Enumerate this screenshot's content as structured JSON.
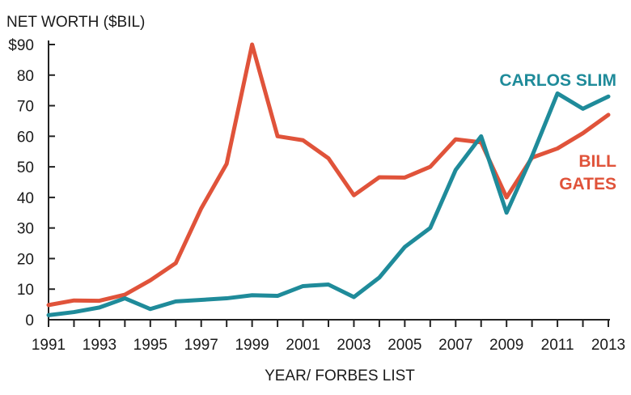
{
  "chart_data": {
    "type": "line",
    "title": "",
    "ylabel": "NET WORTH ($BIL)",
    "xlabel": "YEAR/ FORBES LIST",
    "ylim": [
      0,
      90
    ],
    "xlim": [
      1991,
      2013
    ],
    "grid": false,
    "y_ticks": [
      {
        "value": 0,
        "label": "0"
      },
      {
        "value": 10,
        "label": "10"
      },
      {
        "value": 20,
        "label": "20"
      },
      {
        "value": 30,
        "label": "30"
      },
      {
        "value": 40,
        "label": "40"
      },
      {
        "value": 50,
        "label": "50"
      },
      {
        "value": 60,
        "label": "60"
      },
      {
        "value": 70,
        "label": "70"
      },
      {
        "value": 80,
        "label": "80"
      },
      {
        "value": 90,
        "label": "$90"
      }
    ],
    "x_ticks": [
      {
        "value": 1991,
        "label": "1991"
      },
      {
        "value": 1993,
        "label": "1993"
      },
      {
        "value": 1995,
        "label": "1995"
      },
      {
        "value": 1997,
        "label": "1997"
      },
      {
        "value": 1999,
        "label": "1999"
      },
      {
        "value": 2001,
        "label": "2001"
      },
      {
        "value": 2003,
        "label": "2003"
      },
      {
        "value": 2005,
        "label": "2005"
      },
      {
        "value": 2007,
        "label": "2007"
      },
      {
        "value": 2009,
        "label": "2009"
      },
      {
        "value": 2011,
        "label": "2011"
      },
      {
        "value": 2013,
        "label": "2013"
      }
    ],
    "x": [
      1991,
      1992,
      1993,
      1994,
      1995,
      1996,
      1997,
      1998,
      1999,
      2000,
      2001,
      2002,
      2003,
      2004,
      2005,
      2006,
      2007,
      2008,
      2009,
      2010,
      2011,
      2012,
      2013
    ],
    "series": [
      {
        "name": "BILL GATES",
        "label_lines": [
          "BILL",
          "GATES"
        ],
        "color": "#e0533a",
        "values": [
          4.8,
          6.3,
          6.2,
          8.2,
          12.9,
          18.5,
          36.4,
          51,
          90,
          60,
          58.7,
          52.8,
          40.7,
          46.6,
          46.5,
          50,
          59,
          58,
          40,
          53,
          56,
          61,
          67
        ]
      },
      {
        "name": "CARLOS SLIM",
        "label_lines": [
          "CARLOS SLIM"
        ],
        "color": "#1f8b9a",
        "values": [
          1.5,
          2.5,
          4,
          7,
          3.5,
          6,
          6.5,
          7,
          8,
          7.8,
          11,
          11.5,
          7.4,
          13.8,
          23.8,
          30,
          49,
          60,
          35,
          53.5,
          74,
          69,
          73
        ]
      }
    ]
  }
}
